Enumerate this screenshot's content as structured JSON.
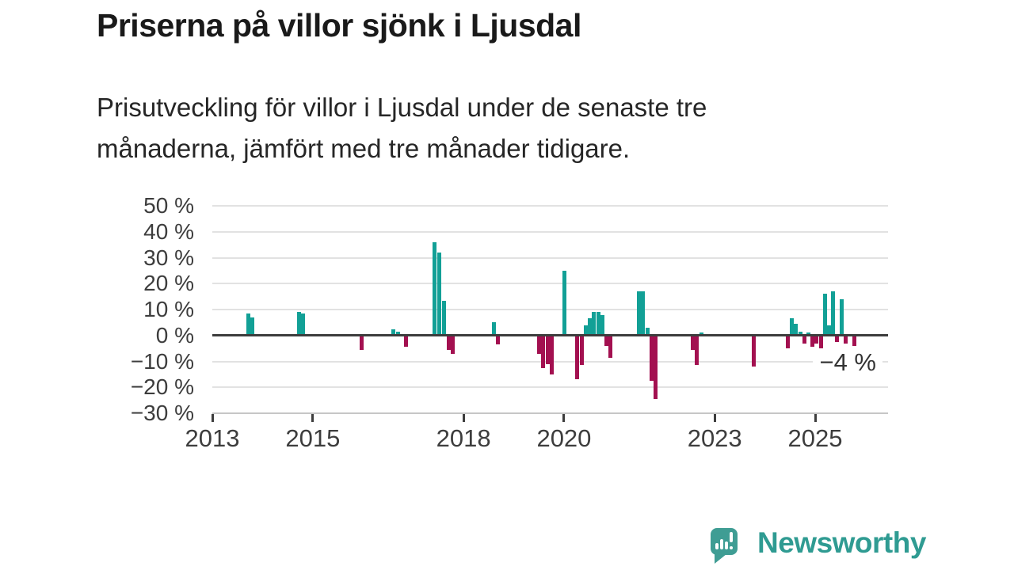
{
  "header": {
    "title": "Priserna på villor sjönk i Ljusdal",
    "subtitle_lines": [
      "Prisutveckling för villor i Ljusdal under de senaste tre",
      "månaderna, jämfört med tre månader tidigare."
    ]
  },
  "chart_data": {
    "type": "bar",
    "title": "Priserna på villor sjönk i Ljusdal",
    "xlabel": "",
    "ylabel": "",
    "unit": "%",
    "xlim": [
      2013,
      2026.45
    ],
    "ylim": [
      -30,
      50
    ],
    "grid": true,
    "legend": false,
    "yticks": [
      {
        "value": 50,
        "label": "50 %"
      },
      {
        "value": 40,
        "label": "40 %"
      },
      {
        "value": 30,
        "label": "30 %"
      },
      {
        "value": 20,
        "label": "20 %"
      },
      {
        "value": 10,
        "label": "10 %"
      },
      {
        "value": 0,
        "label": "0 %"
      },
      {
        "value": -10,
        "label": "−10 %"
      },
      {
        "value": -20,
        "label": "−20 %"
      },
      {
        "value": -30,
        "label": "−30 %"
      }
    ],
    "xticks": [
      {
        "value": 2013,
        "label": "2013"
      },
      {
        "value": 2015,
        "label": "2015"
      },
      {
        "value": 2018,
        "label": "2018"
      },
      {
        "value": 2020,
        "label": "2020"
      },
      {
        "value": 2023,
        "label": "2023"
      },
      {
        "value": 2025,
        "label": "2025"
      }
    ],
    "bars": [
      {
        "x": 2013.72,
        "y": 8.5
      },
      {
        "x": 2013.8,
        "y": 7
      },
      {
        "x": 2014.72,
        "y": 9
      },
      {
        "x": 2014.8,
        "y": 8.5
      },
      {
        "x": 2015.97,
        "y": -5.5
      },
      {
        "x": 2016.61,
        "y": 2.5
      },
      {
        "x": 2016.7,
        "y": 1.5
      },
      {
        "x": 2016.86,
        "y": -4.5
      },
      {
        "x": 2017.43,
        "y": 36
      },
      {
        "x": 2017.52,
        "y": 32
      },
      {
        "x": 2017.61,
        "y": 13.5
      },
      {
        "x": 2017.7,
        "y": -5.5
      },
      {
        "x": 2017.79,
        "y": -7
      },
      {
        "x": 2018.6,
        "y": 5
      },
      {
        "x": 2018.69,
        "y": -3.5
      },
      {
        "x": 2019.5,
        "y": -7
      },
      {
        "x": 2019.59,
        "y": -12.5
      },
      {
        "x": 2019.67,
        "y": -11
      },
      {
        "x": 2019.76,
        "y": -15
      },
      {
        "x": 2020.01,
        "y": 25
      },
      {
        "x": 2020.26,
        "y": -17
      },
      {
        "x": 2020.35,
        "y": -11.5
      },
      {
        "x": 2020.43,
        "y": 4
      },
      {
        "x": 2020.51,
        "y": 6.5
      },
      {
        "x": 2020.6,
        "y": 9
      },
      {
        "x": 2020.68,
        "y": 9
      },
      {
        "x": 2020.76,
        "y": 8
      },
      {
        "x": 2020.85,
        "y": -4
      },
      {
        "x": 2020.93,
        "y": -8.5
      },
      {
        "x": 2021.49,
        "y": 17
      },
      {
        "x": 2021.57,
        "y": 17
      },
      {
        "x": 2021.66,
        "y": 3
      },
      {
        "x": 2021.74,
        "y": -17.5
      },
      {
        "x": 2021.83,
        "y": -24.5
      },
      {
        "x": 2022.56,
        "y": -5.5
      },
      {
        "x": 2022.64,
        "y": -11.5
      },
      {
        "x": 2022.73,
        "y": 1
      },
      {
        "x": 2023.78,
        "y": -12
      },
      {
        "x": 2024.46,
        "y": -5
      },
      {
        "x": 2024.54,
        "y": 6.5
      },
      {
        "x": 2024.62,
        "y": 4.5
      },
      {
        "x": 2024.7,
        "y": 1.5
      },
      {
        "x": 2024.78,
        "y": -3
      },
      {
        "x": 2024.86,
        "y": 1
      },
      {
        "x": 2024.94,
        "y": -4.5
      },
      {
        "x": 2025.03,
        "y": -3
      },
      {
        "x": 2025.11,
        "y": -5
      },
      {
        "x": 2025.19,
        "y": 16
      },
      {
        "x": 2025.28,
        "y": 4
      },
      {
        "x": 2025.36,
        "y": 17
      },
      {
        "x": 2025.44,
        "y": -2.5
      },
      {
        "x": 2025.53,
        "y": 14
      },
      {
        "x": 2025.61,
        "y": -3
      },
      {
        "x": 2025.78,
        "y": -4
      }
    ],
    "annotation": {
      "text": "−4 %",
      "x": 2025.78,
      "y": -4
    },
    "colors": {
      "positive": "#12a096",
      "negative": "#a31050",
      "zero_line": "#3d3d3d",
      "gridline": "#e2e2e2",
      "axis_text": "#3d3d3d"
    }
  },
  "footer": {
    "logo_text": "Newsworthy"
  }
}
